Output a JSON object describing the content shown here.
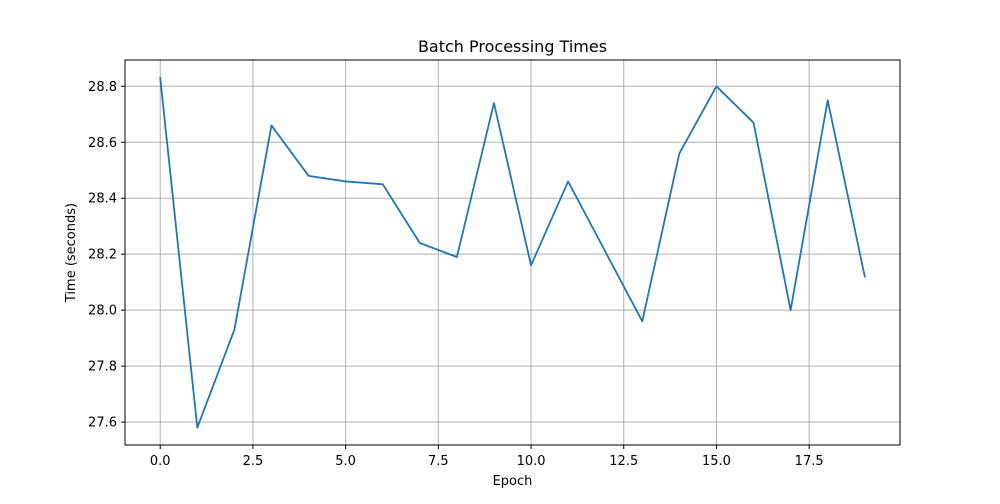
{
  "chart_data": {
    "type": "line",
    "title": "Batch Processing Times",
    "xlabel": "Epoch",
    "ylabel": "Time (seconds)",
    "x": [
      0,
      1,
      2,
      3,
      4,
      5,
      6,
      7,
      8,
      9,
      10,
      11,
      12,
      13,
      14,
      15,
      16,
      17,
      18,
      19
    ],
    "series": [
      {
        "values": [
          28.83,
          27.58,
          27.93,
          28.66,
          28.48,
          28.46,
          28.45,
          28.24,
          28.19,
          28.74,
          28.16,
          28.46,
          28.21,
          27.96,
          28.56,
          28.8,
          28.67,
          28.0,
          28.75,
          28.12
        ],
        "color": "#1f77b4"
      }
    ],
    "xlim": [
      -0.95,
      19.95
    ],
    "ylim": [
      27.518,
      28.894
    ],
    "xticks": [
      0,
      2.5,
      5,
      7.5,
      10,
      12.5,
      15,
      17.5
    ],
    "xtick_labels": [
      "0.0",
      "2.5",
      "5.0",
      "7.5",
      "10.0",
      "12.5",
      "15.0",
      "17.5"
    ],
    "yticks": [
      27.6,
      27.8,
      28.0,
      28.2,
      28.4,
      28.6,
      28.8
    ],
    "ytick_labels": [
      "27.6",
      "27.8",
      "28.0",
      "28.2",
      "28.4",
      "28.6",
      "28.8"
    ],
    "grid": true,
    "legend": "none"
  }
}
